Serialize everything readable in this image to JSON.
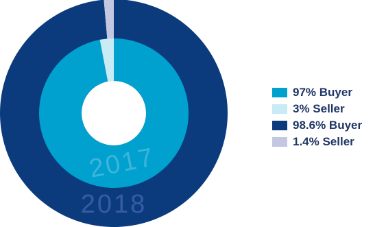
{
  "chart_data": {
    "type": "pie",
    "variant": "nested-donut",
    "rings": [
      {
        "name": "2018",
        "position": "outer",
        "label_color": "#5a76c8",
        "slices": [
          {
            "label": "98.6% Buyer",
            "category": "Buyer",
            "value": 98.6,
            "color": "#0c3b7d"
          },
          {
            "label": "1.4% Seller",
            "category": "Seller",
            "value": 1.4,
            "color": "#c3c7e2"
          }
        ]
      },
      {
        "name": "2017",
        "position": "inner",
        "label_color": "#6fc7e6",
        "slices": [
          {
            "label": "97% Buyer",
            "category": "Buyer",
            "value": 97,
            "color": "#00a0cf"
          },
          {
            "label": "3% Seller",
            "category": "Seller",
            "value": 3,
            "color": "#c9ebf6"
          }
        ]
      }
    ],
    "legend": {
      "placement": "right",
      "entries": [
        {
          "label": "97% Buyer",
          "color": "#00a0cf"
        },
        {
          "label": "3% Seller",
          "color": "#c9ebf6"
        },
        {
          "label": "98.6% Buyer",
          "color": "#0c3b7d"
        },
        {
          "label": "1.4% Seller",
          "color": "#c3c7e2"
        }
      ]
    }
  }
}
